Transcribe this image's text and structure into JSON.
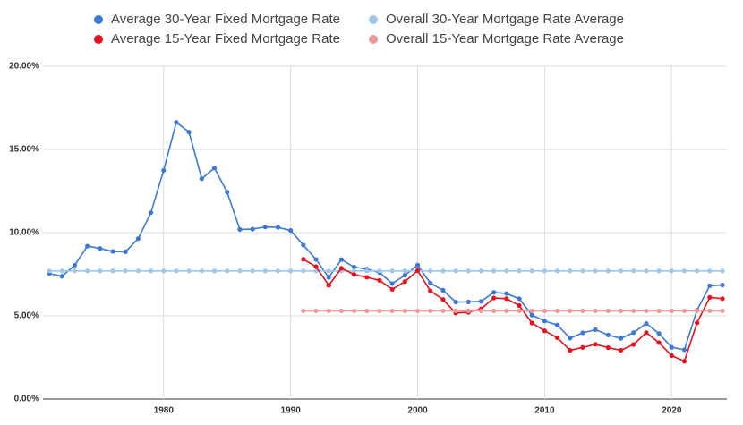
{
  "chart_data": {
    "type": "line",
    "x": [
      1971,
      1972,
      1973,
      1974,
      1975,
      1976,
      1977,
      1978,
      1979,
      1980,
      1981,
      1982,
      1983,
      1984,
      1985,
      1986,
      1987,
      1988,
      1989,
      1990,
      1991,
      1992,
      1993,
      1994,
      1995,
      1996,
      1997,
      1998,
      1999,
      2000,
      2001,
      2002,
      2003,
      2004,
      2005,
      2006,
      2007,
      2008,
      2009,
      2010,
      2011,
      2012,
      2013,
      2014,
      2015,
      2016,
      2017,
      2018,
      2019,
      2020,
      2021,
      2022,
      2023,
      2024
    ],
    "series": [
      {
        "name": "Average 30-Year Fixed Mortgage Rate",
        "color": "#3c78d8",
        "values": [
          7.54,
          7.38,
          8.04,
          9.19,
          9.05,
          8.87,
          8.85,
          9.64,
          11.2,
          13.74,
          16.63,
          16.04,
          13.24,
          13.88,
          12.43,
          10.19,
          10.21,
          10.34,
          10.32,
          10.13,
          9.25,
          8.39,
          7.31,
          8.38,
          7.93,
          7.81,
          7.6,
          6.94,
          7.44,
          8.05,
          6.97,
          6.54,
          5.83,
          5.84,
          5.87,
          6.41,
          6.34,
          6.03,
          5.04,
          4.69,
          4.45,
          3.66,
          3.98,
          4.17,
          3.85,
          3.65,
          3.99,
          4.54,
          3.94,
          3.11,
          2.96,
          5.34,
          6.81,
          6.85
        ]
      },
      {
        "name": "Overall 30-Year Mortgage Rate Average",
        "color": "#9fc5e8",
        "values": [
          7.7,
          7.7,
          7.7,
          7.7,
          7.7,
          7.7,
          7.7,
          7.7,
          7.7,
          7.7,
          7.7,
          7.7,
          7.7,
          7.7,
          7.7,
          7.7,
          7.7,
          7.7,
          7.7,
          7.7,
          7.7,
          7.7,
          7.7,
          7.7,
          7.7,
          7.7,
          7.7,
          7.7,
          7.7,
          7.7,
          7.7,
          7.7,
          7.7,
          7.7,
          7.7,
          7.7,
          7.7,
          7.7,
          7.7,
          7.7,
          7.7,
          7.7,
          7.7,
          7.7,
          7.7,
          7.7,
          7.7,
          7.7,
          7.7,
          7.7,
          7.7,
          7.7,
          7.7,
          7.7
        ]
      },
      {
        "name": "Average 15-Year Fixed Mortgage Rate",
        "color": "#e8101a",
        "values": [
          null,
          null,
          null,
          null,
          null,
          null,
          null,
          null,
          null,
          null,
          null,
          null,
          null,
          null,
          null,
          null,
          null,
          null,
          null,
          null,
          8.4,
          7.96,
          6.83,
          7.86,
          7.48,
          7.32,
          7.13,
          6.59,
          7.06,
          7.72,
          6.5,
          5.98,
          5.17,
          5.21,
          5.42,
          6.07,
          6.03,
          5.62,
          4.57,
          4.1,
          3.68,
          2.93,
          3.1,
          3.29,
          3.09,
          2.93,
          3.28,
          3.99,
          3.39,
          2.61,
          2.27,
          4.58,
          6.11,
          6.03
        ]
      },
      {
        "name": "Overall 15-Year Mortgage Rate Average",
        "color": "#ea9999",
        "values": [
          null,
          null,
          null,
          null,
          null,
          null,
          null,
          null,
          null,
          null,
          null,
          null,
          null,
          null,
          null,
          null,
          null,
          null,
          null,
          null,
          5.3,
          5.3,
          5.3,
          5.3,
          5.3,
          5.3,
          5.3,
          5.3,
          5.3,
          5.3,
          5.3,
          5.3,
          5.3,
          5.3,
          5.3,
          5.3,
          5.3,
          5.3,
          5.3,
          5.3,
          5.3,
          5.3,
          5.3,
          5.3,
          5.3,
          5.3,
          5.3,
          5.3,
          5.3,
          5.3,
          5.3,
          5.3,
          5.3,
          5.3
        ]
      }
    ],
    "xlim": [
      1970.5,
      2024.35
    ],
    "xticks": [
      1980,
      1990,
      2000,
      2010,
      2020
    ],
    "ylim": [
      0,
      20
    ],
    "yticks": [
      {
        "value": 0,
        "label": "0.00%"
      },
      {
        "value": 5,
        "label": "5.00%"
      },
      {
        "value": 10,
        "label": "10.00%"
      },
      {
        "value": 15,
        "label": "15.00%"
      },
      {
        "value": 20,
        "label": "20.00%"
      }
    ],
    "grid": true,
    "legend": "top"
  }
}
